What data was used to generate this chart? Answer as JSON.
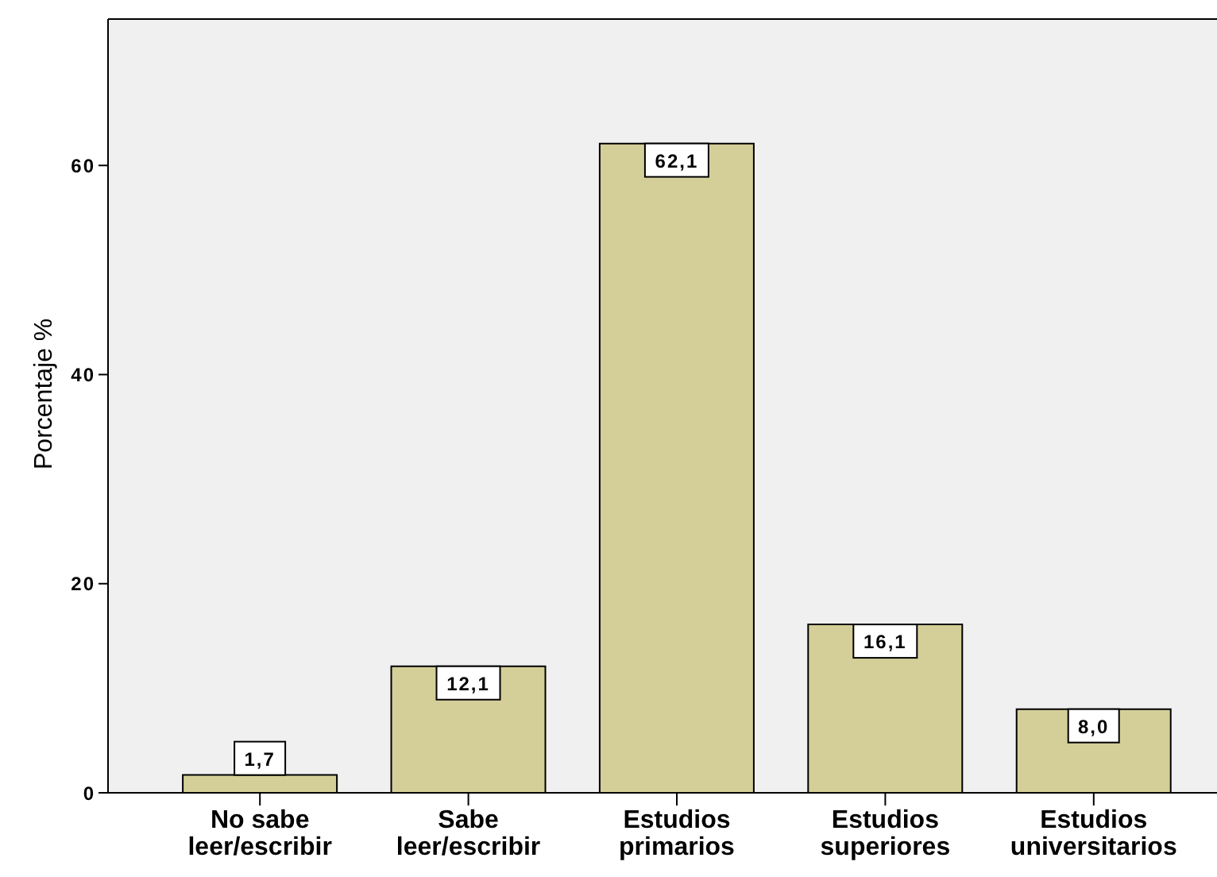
{
  "chart_data": {
    "type": "bar",
    "ylabel": "Porcentaje %",
    "categories": [
      "No sabe leer/escribir",
      "Sabe leer/escribir",
      "Estudios primarios",
      "Estudios superiores",
      "Estudios universitarios"
    ],
    "values": [
      1.7,
      12.1,
      62.1,
      16.1,
      8.0
    ],
    "value_labels": [
      "1,7",
      "12,1",
      "62,1",
      "16,1",
      "8,0"
    ],
    "color": "#d4ce98",
    "ylim": [
      0,
      74
    ],
    "yticks": [
      0,
      20,
      40,
      60
    ]
  }
}
